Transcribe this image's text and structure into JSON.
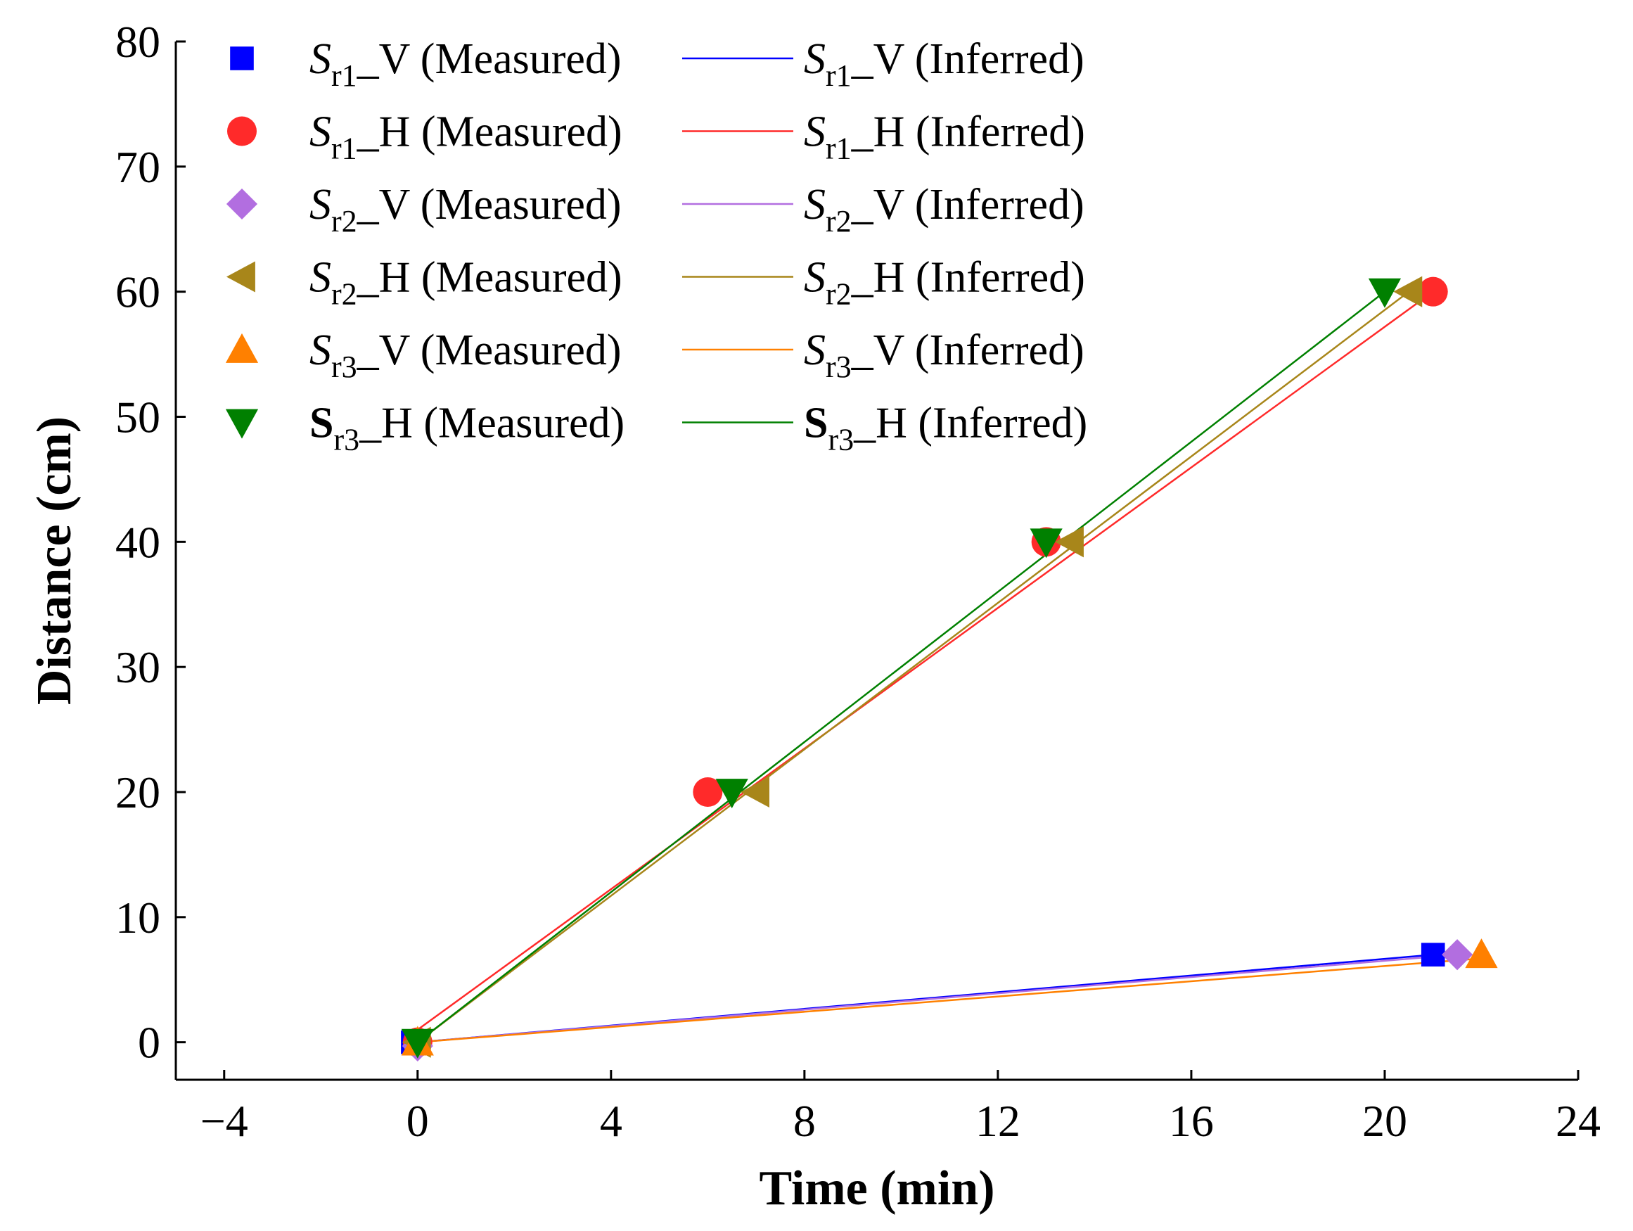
{
  "chart_data": {
    "type": "scatter",
    "title": "",
    "xlabel": "Time (min)",
    "ylabel": "Distance (cm)",
    "xlim": [
      -5,
      24
    ],
    "ylim": [
      -3,
      80
    ],
    "xticks": [
      -4,
      0,
      4,
      8,
      12,
      16,
      20,
      24
    ],
    "yticks": [
      0,
      10,
      20,
      30,
      40,
      50,
      60,
      70,
      80
    ],
    "xtick_labels": [
      "−4",
      "0",
      "4",
      "8",
      "12",
      "16",
      "20",
      "24"
    ],
    "ytick_labels": [
      "0",
      "10",
      "20",
      "30",
      "40",
      "50",
      "60",
      "70",
      "80"
    ],
    "grid": false,
    "legend_position": "top-left",
    "series": [
      {
        "name": "Sr1_V",
        "letter": "S",
        "sub": "r1",
        "suffix": "_V",
        "bold": false,
        "color": "#0000ff",
        "marker": "square",
        "measured_label": " (Measured)",
        "inferred_label": " (Inferred)",
        "measured": {
          "x": [
            -0.1,
            21
          ],
          "y": [
            0,
            7
          ]
        },
        "inferred": {
          "x": [
            0,
            21
          ],
          "y": [
            0,
            7
          ]
        }
      },
      {
        "name": "Sr1_H",
        "letter": "S",
        "sub": "r1",
        "suffix": "_H",
        "bold": false,
        "color": "#ff2a2a",
        "marker": "circle",
        "measured_label": " (Measured)",
        "inferred_label": " (Inferred)",
        "measured": {
          "x": [
            0,
            6,
            13,
            21
          ],
          "y": [
            0,
            20,
            40,
            60
          ]
        },
        "inferred": {
          "x": [
            0,
            21
          ],
          "y": [
            1,
            60
          ]
        }
      },
      {
        "name": "Sr2_V",
        "letter": "S",
        "sub": "r2",
        "suffix": "_V",
        "bold": false,
        "color": "#b26ee0",
        "marker": "diamond",
        "measured_label": " (Measured)",
        "inferred_label": " (Inferred)",
        "measured": {
          "x": [
            0,
            21.5
          ],
          "y": [
            -0.3,
            7
          ]
        },
        "inferred": {
          "x": [
            0,
            21.5
          ],
          "y": [
            0,
            7
          ]
        }
      },
      {
        "name": "Sr2_H",
        "letter": "S",
        "sub": "r2",
        "suffix": "_H",
        "bold": false,
        "color": "#a8861a",
        "marker": "triangle-left",
        "measured_label": " (Measured)",
        "inferred_label": " (Inferred)",
        "measured": {
          "x": [
            0,
            7,
            13.5,
            20.5
          ],
          "y": [
            0,
            20,
            40,
            60
          ]
        },
        "inferred": {
          "x": [
            0,
            20.5
          ],
          "y": [
            0,
            60
          ]
        }
      },
      {
        "name": "Sr3_V",
        "letter": "S",
        "sub": "r3",
        "suffix": "_V",
        "bold": false,
        "color": "#ff8000",
        "marker": "triangle-up",
        "measured_label": " (Measured)",
        "inferred_label": " (Inferred)",
        "measured": {
          "x": [
            0,
            22
          ],
          "y": [
            0,
            7
          ]
        },
        "inferred": {
          "x": [
            0,
            22
          ],
          "y": [
            0,
            6.7
          ]
        }
      },
      {
        "name": "Sr3_H",
        "letter": "S",
        "sub": "r3",
        "suffix": "_H",
        "bold": true,
        "color": "#008000",
        "marker": "triangle-down",
        "measured_label": " (Measured)",
        "inferred_label": " (Inferred)",
        "measured": {
          "x": [
            0,
            6.5,
            13,
            20
          ],
          "y": [
            0,
            20,
            40,
            60
          ]
        },
        "inferred": {
          "x": [
            0,
            20
          ],
          "y": [
            0,
            60
          ]
        }
      }
    ]
  }
}
